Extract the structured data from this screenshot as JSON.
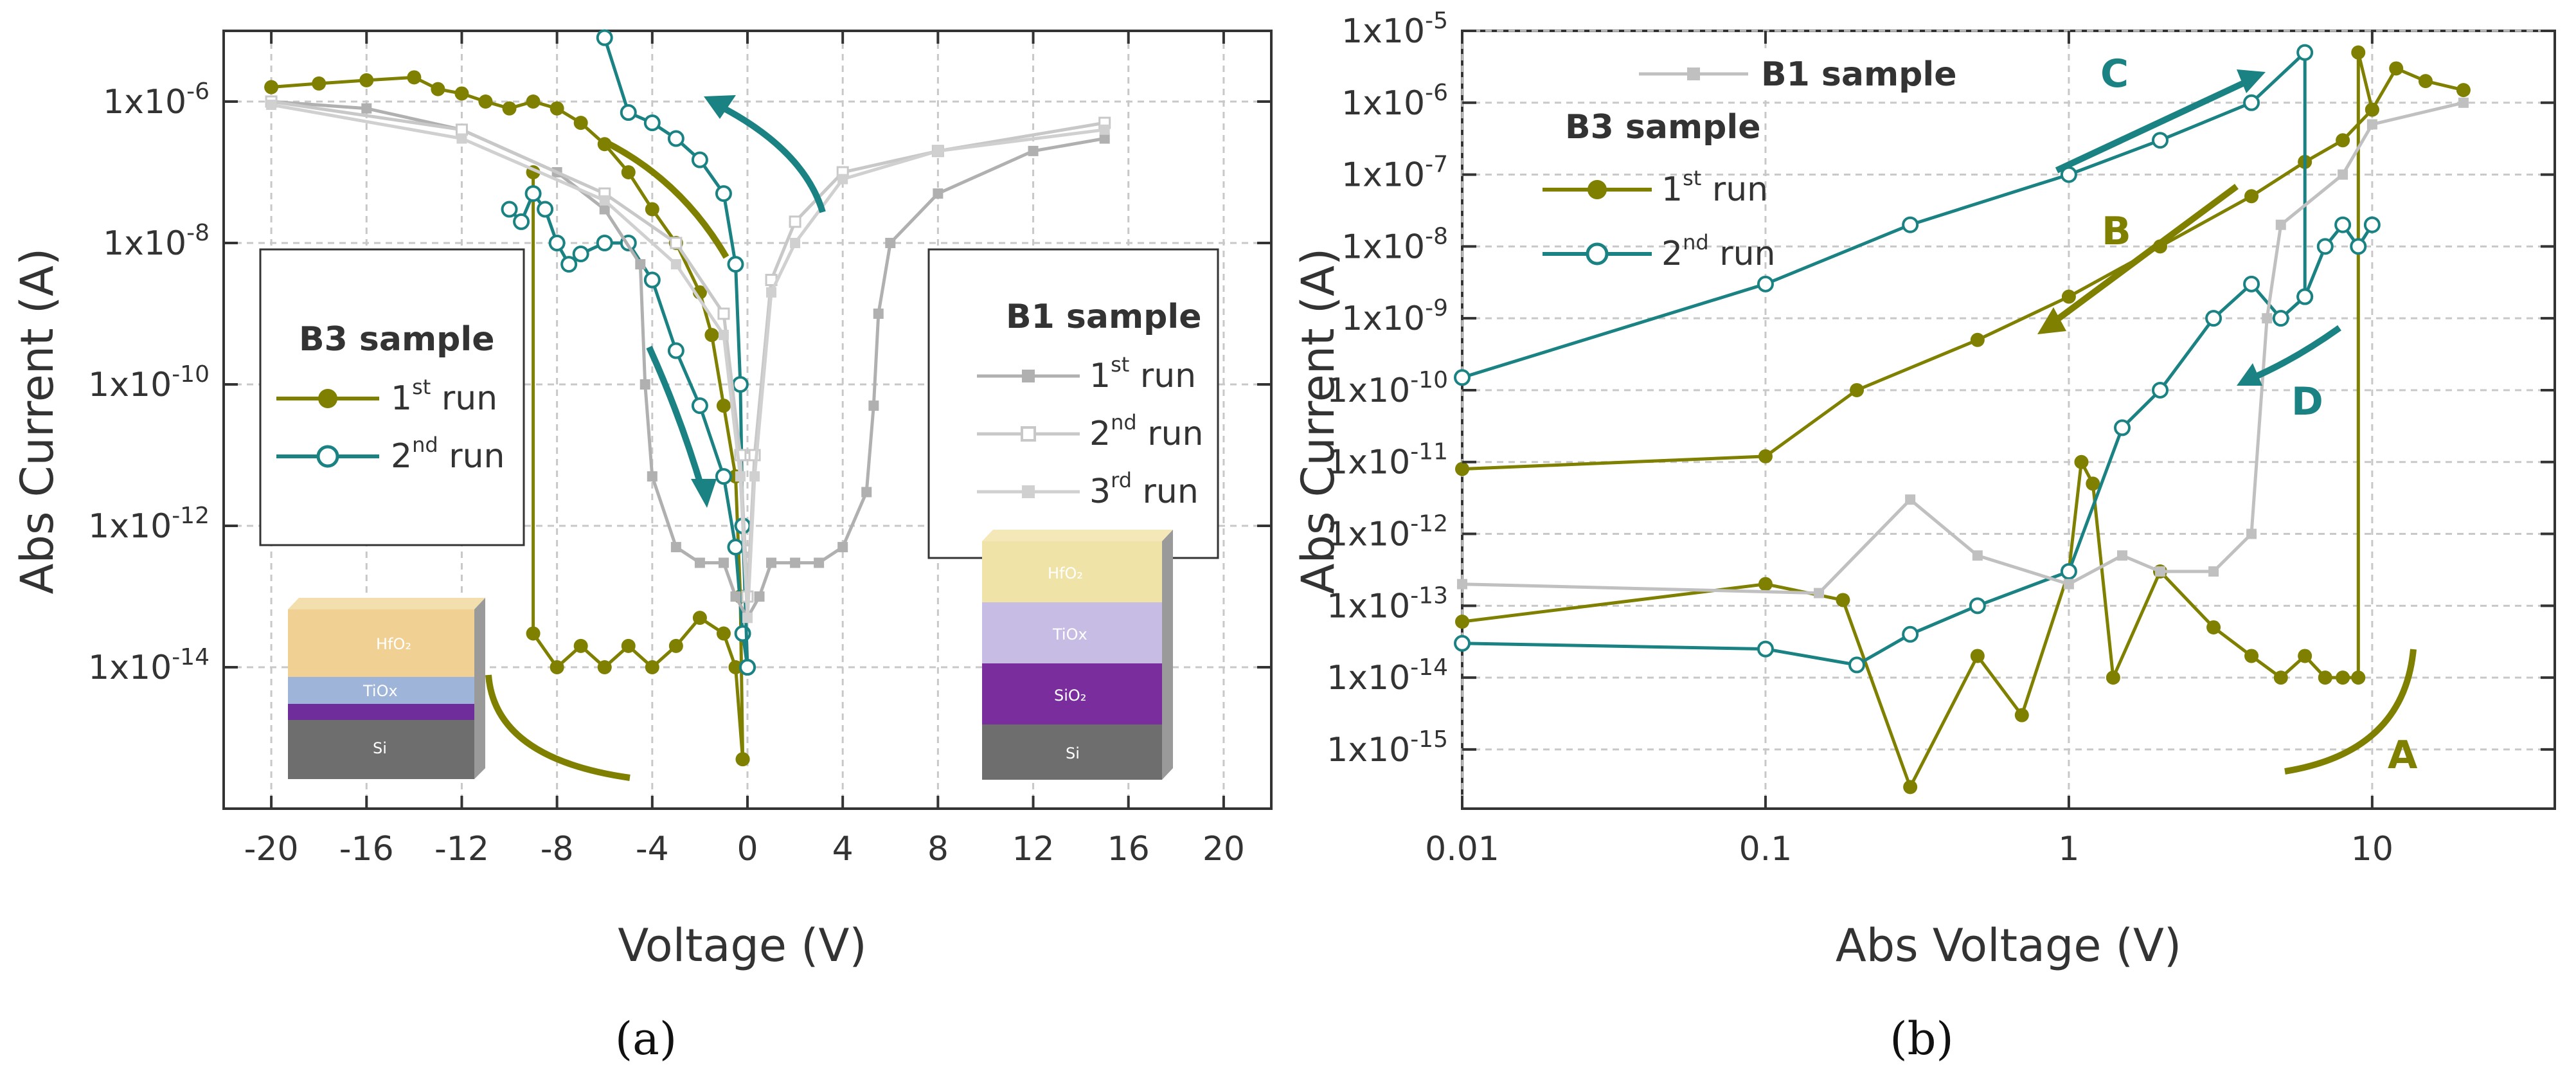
{
  "chart_data": [
    {
      "panel": "(a)",
      "type": "line",
      "xlabel": "Voltage (V)",
      "ylabel": "Abs Current (A)",
      "xlim": [
        -22,
        22
      ],
      "ylim": [
        1e-16,
        1e-05
      ],
      "yscale": "log",
      "xticks": [
        -20,
        -16,
        -12,
        -8,
        -4,
        0,
        4,
        8,
        12,
        16,
        20
      ],
      "xtick_labels": [
        "-20",
        "-16",
        "-12",
        "-8",
        "-4",
        "0",
        "4",
        "8",
        "12",
        "16",
        "20"
      ],
      "yticks": [
        1e-14,
        1e-12,
        1e-10,
        1e-08,
        1e-06
      ],
      "ytick_mantissa": "1x10",
      "ytick_exponents": [
        "-14",
        "-12",
        "-10",
        "-8",
        "-6"
      ],
      "grid": true,
      "legends": [
        {
          "title": "B3 sample",
          "placement": "middle-left",
          "entries": [
            {
              "label": "1",
              "sup": "st",
              "suffix": " run"
            },
            {
              "label": "2",
              "sup": "nd",
              "suffix": " run"
            }
          ]
        },
        {
          "title": "B1 sample",
          "placement": "middle-right",
          "entries": [
            {
              "label": "1",
              "sup": "st",
              "suffix": " run"
            },
            {
              "label": "2",
              "sup": "nd",
              "suffix": " run"
            },
            {
              "label": "3",
              "sup": "rd",
              "suffix": " run"
            }
          ]
        }
      ],
      "series": [
        {
          "name": "B3 1st run",
          "color": "#7f7f00",
          "marker": "filled-circle",
          "points": [
            [
              -20,
              1.6e-06
            ],
            [
              -18,
              1.8e-06
            ],
            [
              -16,
              2e-06
            ],
            [
              -14,
              2.2e-06
            ],
            [
              -13,
              1.5e-06
            ],
            [
              -12,
              1.3e-06
            ],
            [
              -11,
              1e-06
            ],
            [
              -10,
              8e-07
            ],
            [
              -9,
              1e-06
            ],
            [
              -8,
              8e-07
            ],
            [
              -7,
              5e-07
            ],
            [
              -6,
              2.5e-07
            ],
            [
              -5,
              1e-07
            ],
            [
              -4,
              3e-08
            ],
            [
              -3,
              1e-08
            ],
            [
              -2,
              2e-09
            ],
            [
              -1.5,
              5e-10
            ],
            [
              -1,
              5e-11
            ],
            [
              -0.5,
              5e-12
            ],
            [
              -0.3,
              1e-13
            ],
            [
              -0.2,
              5e-16
            ]
          ],
          "branch2": [
            [
              -0.2,
              5e-16
            ],
            [
              -0.5,
              1e-14
            ],
            [
              -1,
              3e-14
            ],
            [
              -2,
              5e-14
            ],
            [
              -3,
              2e-14
            ],
            [
              -4,
              1e-14
            ],
            [
              -5,
              2e-14
            ],
            [
              -6,
              1e-14
            ],
            [
              -7,
              2e-14
            ],
            [
              -8,
              1e-14
            ],
            [
              -9,
              3e-14
            ],
            [
              -9,
              1e-07
            ]
          ]
        },
        {
          "name": "B3 2nd run",
          "color": "#1a8282",
          "marker": "open-circle",
          "points": [
            [
              -10,
              3e-08
            ],
            [
              -9.5,
              2e-08
            ],
            [
              -9,
              5e-08
            ],
            [
              -8.5,
              3e-08
            ],
            [
              -8,
              1e-08
            ],
            [
              -7.5,
              5e-09
            ],
            [
              -7,
              7e-09
            ],
            [
              -6,
              1e-08
            ],
            [
              -5,
              1e-08
            ],
            [
              -4,
              3e-09
            ],
            [
              -3,
              3e-10
            ],
            [
              -2,
              5e-11
            ],
            [
              -1,
              5e-12
            ],
            [
              -0.5,
              5e-13
            ],
            [
              -0.2,
              3e-14
            ],
            [
              0,
              1e-14
            ]
          ],
          "branch2": [
            [
              0,
              1e-14
            ],
            [
              -0.2,
              1e-12
            ],
            [
              -0.3,
              1e-10
            ],
            [
              -0.5,
              5e-09
            ],
            [
              -1,
              5e-08
            ],
            [
              -2,
              1.5e-07
            ],
            [
              -3,
              3e-07
            ],
            [
              -4,
              5e-07
            ],
            [
              -5,
              7e-07
            ],
            [
              -6,
              8e-06
            ]
          ]
        },
        {
          "name": "B1 1st run",
          "color": "#b0b0b0",
          "marker": "filled-square",
          "points": [
            [
              -20,
              1e-06
            ],
            [
              -16,
              8e-07
            ],
            [
              -12,
              4e-07
            ],
            [
              -8,
              1e-07
            ],
            [
              -6,
              3e-08
            ],
            [
              -4.5,
              5e-09
            ],
            [
              -4.3,
              1e-10
            ],
            [
              -4,
              5e-12
            ],
            [
              -3,
              5e-13
            ],
            [
              -2,
              3e-13
            ],
            [
              -1,
              3e-13
            ],
            [
              -0.5,
              1e-13
            ],
            [
              0,
              5e-14
            ],
            [
              0.5,
              1e-13
            ],
            [
              1,
              3e-13
            ],
            [
              2,
              3e-13
            ],
            [
              3,
              3e-13
            ],
            [
              4,
              5e-13
            ],
            [
              5,
              3e-12
            ],
            [
              5.3,
              5e-11
            ],
            [
              5.5,
              1e-09
            ],
            [
              6,
              1e-08
            ],
            [
              8,
              5e-08
            ],
            [
              12,
              2e-07
            ],
            [
              15,
              3e-07
            ]
          ]
        },
        {
          "name": "B1 2nd run",
          "color": "#c8c8c8",
          "marker": "open-square",
          "points": [
            [
              -20,
              1e-06
            ],
            [
              -12,
              4e-07
            ],
            [
              -6,
              5e-08
            ],
            [
              -3,
              1e-08
            ],
            [
              -1,
              1e-09
            ],
            [
              -0.3,
              1e-11
            ],
            [
              0,
              1e-13
            ],
            [
              0.3,
              1e-11
            ],
            [
              1,
              3e-09
            ],
            [
              2,
              2e-08
            ],
            [
              4,
              1e-07
            ],
            [
              8,
              2e-07
            ],
            [
              15,
              5e-07
            ]
          ]
        },
        {
          "name": "B1 3rd run",
          "color": "#d0d0d0",
          "marker": "filled-square",
          "points": [
            [
              -20,
              9e-07
            ],
            [
              -12,
              3e-07
            ],
            [
              -6,
              4e-08
            ],
            [
              -3,
              5e-09
            ],
            [
              -1,
              5e-10
            ],
            [
              -0.3,
              5e-12
            ],
            [
              0,
              5e-14
            ],
            [
              0.3,
              5e-12
            ],
            [
              1,
              2e-09
            ],
            [
              2,
              1e-08
            ],
            [
              4,
              8e-08
            ],
            [
              8,
              2e-07
            ],
            [
              15,
              4e-07
            ]
          ]
        }
      ],
      "insets": [
        {
          "name": "B3 stack",
          "layers": [
            "HfO₂",
            "TiOx",
            "",
            "Si"
          ]
        },
        {
          "name": "B1 stack",
          "layers": [
            "HfO₂",
            "TiOx",
            "SiO₂",
            "Si"
          ]
        }
      ]
    },
    {
      "panel": "(b)",
      "type": "line",
      "xlabel": "Abs Voltage (V)",
      "ylabel": "Abs Current (A)",
      "xscale": "log",
      "yscale": "log",
      "xlim": [
        0.01,
        40
      ],
      "ylim": [
        1.5e-16,
        1e-05
      ],
      "xticks": [
        0.01,
        0.1,
        1,
        10
      ],
      "xtick_labels": [
        "0.01",
        "0.1",
        "1",
        "10"
      ],
      "yticks": [
        1e-15,
        1e-14,
        1e-13,
        1e-12,
        1e-11,
        1e-10,
        1e-09,
        1e-08,
        1e-07,
        1e-06,
        1e-05
      ],
      "ytick_mantissa": "1x10",
      "ytick_exponents": [
        "-15",
        "-14",
        "-13",
        "-12",
        "-11",
        "-10",
        "-9",
        "-8",
        "-7",
        "-6",
        "-5"
      ],
      "grid": true,
      "legends": [
        {
          "title": "B1 sample",
          "placement": "top-left",
          "entries": []
        },
        {
          "title": "B3 sample",
          "placement": "top-left",
          "entries": [
            {
              "label": "1",
              "sup": "st",
              "suffix": " run"
            },
            {
              "label": "2",
              "sup": "nd",
              "suffix": " run"
            }
          ]
        }
      ],
      "annotations": [
        "A",
        "B",
        "C",
        "D"
      ],
      "series": [
        {
          "name": "B3 1st run (forward)",
          "color": "#7f7f00",
          "marker": "filled-circle",
          "points": [
            [
              0.01,
              6e-14
            ],
            [
              0.1,
              2e-13
            ],
            [
              0.18,
              1.2e-13
            ],
            [
              0.3,
              3e-16
            ],
            [
              0.5,
              2e-14
            ],
            [
              0.7,
              3e-15
            ],
            [
              1,
              3e-13
            ],
            [
              1.1,
              1e-11
            ],
            [
              1.2,
              5e-12
            ],
            [
              1.4,
              1e-14
            ],
            [
              2,
              3e-13
            ],
            [
              3,
              5e-14
            ],
            [
              4,
              2e-14
            ],
            [
              5,
              1e-14
            ],
            [
              6,
              2e-14
            ],
            [
              7,
              1e-14
            ],
            [
              8,
              1e-14
            ],
            [
              9,
              1e-14
            ],
            [
              9,
              5e-06
            ],
            [
              10,
              8e-07
            ],
            [
              12,
              3e-06
            ],
            [
              15,
              2e-06
            ],
            [
              20,
              1.5e-06
            ]
          ]
        },
        {
          "name": "B3 1st run (return)",
          "color": "#7f7f00",
          "marker": "filled-circle",
          "points": [
            [
              0.01,
              8e-12
            ],
            [
              0.1,
              1.2e-11
            ],
            [
              0.2,
              1e-10
            ],
            [
              0.5,
              5e-10
            ],
            [
              1,
              2e-09
            ],
            [
              2,
              1e-08
            ],
            [
              4,
              5e-08
            ],
            [
              6,
              1.5e-07
            ],
            [
              8,
              3e-07
            ],
            [
              10,
              8e-07
            ]
          ]
        },
        {
          "name": "B3 2nd run (forward)",
          "color": "#1a8282",
          "marker": "open-circle",
          "points": [
            [
              0.01,
              3e-14
            ],
            [
              0.1,
              2.5e-14
            ],
            [
              0.2,
              1.5e-14
            ],
            [
              0.3,
              4e-14
            ],
            [
              0.5,
              1e-13
            ],
            [
              1,
              3e-13
            ],
            [
              1.5,
              3e-11
            ],
            [
              2,
              1e-10
            ],
            [
              3,
              1e-09
            ],
            [
              4,
              3e-09
            ],
            [
              5,
              1e-09
            ],
            [
              6,
              2e-09
            ],
            [
              7,
              1e-08
            ],
            [
              8,
              2e-08
            ],
            [
              9,
              1e-08
            ],
            [
              10,
              2e-08
            ]
          ]
        },
        {
          "name": "B3 2nd run (return)",
          "color": "#1a8282",
          "marker": "open-circle",
          "points": [
            [
              0.01,
              1.5e-10
            ],
            [
              0.1,
              3e-09
            ],
            [
              0.3,
              2e-08
            ],
            [
              1,
              1e-07
            ],
            [
              2,
              3e-07
            ],
            [
              4,
              1e-06
            ],
            [
              6,
              5e-06
            ],
            [
              6,
              2e-09
            ]
          ]
        },
        {
          "name": "B1 sample",
          "color": "#c0c0c0",
          "marker": "filled-square",
          "points": [
            [
              0.01,
              2e-13
            ],
            [
              0.15,
              1.5e-13
            ],
            [
              0.3,
              3e-12
            ],
            [
              0.5,
              5e-13
            ],
            [
              1,
              2e-13
            ],
            [
              1.5,
              5e-13
            ],
            [
              2,
              3e-13
            ],
            [
              3,
              3e-13
            ],
            [
              4,
              1e-12
            ],
            [
              4.5,
              1e-09
            ],
            [
              5,
              2e-08
            ],
            [
              8,
              1e-07
            ],
            [
              10,
              5e-07
            ],
            [
              20,
              1e-06
            ]
          ]
        }
      ]
    }
  ],
  "panel_labels": [
    "(a)",
    "(b)"
  ],
  "colors": {
    "b3_run1": "#7f7f00",
    "b3_run2": "#1a8282",
    "b1": "#bbbbbb"
  }
}
